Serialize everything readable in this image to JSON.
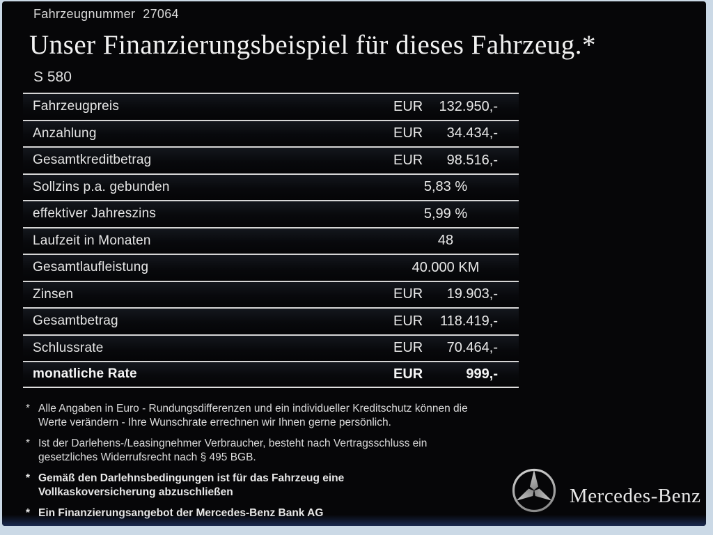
{
  "page": {
    "vehicle_number_label": "Fahrzeugnummer",
    "vehicle_number_value": "27064",
    "title": "Unser Finanzierungsbeispiel für dieses Fahrzeug.*",
    "model": "S 580"
  },
  "table": {
    "rows": [
      {
        "label": "Fahrzeugpreis",
        "currency": "EUR",
        "value": "132.950,-",
        "bold": false
      },
      {
        "label": "Anzahlung",
        "currency": "EUR",
        "value": "34.434,-",
        "bold": false
      },
      {
        "label": "Gesamtkreditbetrag",
        "currency": "EUR",
        "value": "98.516,-",
        "bold": false
      },
      {
        "label": "Sollzins p.a. gebunden",
        "currency": null,
        "value": "5,83 %",
        "bold": false
      },
      {
        "label": "effektiver Jahreszins",
        "currency": null,
        "value": "5,99 %",
        "bold": false
      },
      {
        "label": "Laufzeit in Monaten",
        "currency": null,
        "value": "48",
        "bold": false
      },
      {
        "label": "Gesamtlaufleistung",
        "currency": null,
        "value": "40.000 KM",
        "bold": false
      },
      {
        "label": "Zinsen",
        "currency": "EUR",
        "value": "19.903,-",
        "bold": false
      },
      {
        "label": "Gesamtbetrag",
        "currency": "EUR",
        "value": "118.419,-",
        "bold": false
      },
      {
        "label": "Schlussrate",
        "currency": "EUR",
        "value": "70.464,-",
        "bold": false
      },
      {
        "label": "monatliche Rate",
        "currency": "EUR",
        "value": "999,-",
        "bold": true
      }
    ]
  },
  "footnotes": [
    {
      "marker": "*",
      "bold": false,
      "text": "Alle Angaben in Euro - Rundungsdifferenzen und ein individueller Kreditschutz können die\nWerte verändern - Ihre Wunschrate errechnen wir Ihnen gerne persönlich."
    },
    {
      "marker": "*",
      "bold": false,
      "text": "Ist der Darlehens-/Leasingnehmer Verbraucher, besteht nach Vertragsschluss ein\ngesetzliches  Widerrufsrecht nach § 495 BGB."
    },
    {
      "marker": "*",
      "bold": true,
      "text": "Gemäß den Darlehnsbedingungen ist für das Fahrzeug eine\nVollkaskoversicherung abzuschließen"
    },
    {
      "marker": "*",
      "bold": true,
      "text": "Ein Finanzierungsangebot der Mercedes-Benz Bank AG"
    }
  ],
  "brand": {
    "name": "Mercedes-Benz",
    "logo": "mercedes-star-icon"
  },
  "colors": {
    "frame_border": "#cbd9e6",
    "content_background": "#060608",
    "text": "#e8e8e8",
    "separator_line": "#d6d6d6",
    "bottom_glow": "#1e305c"
  }
}
